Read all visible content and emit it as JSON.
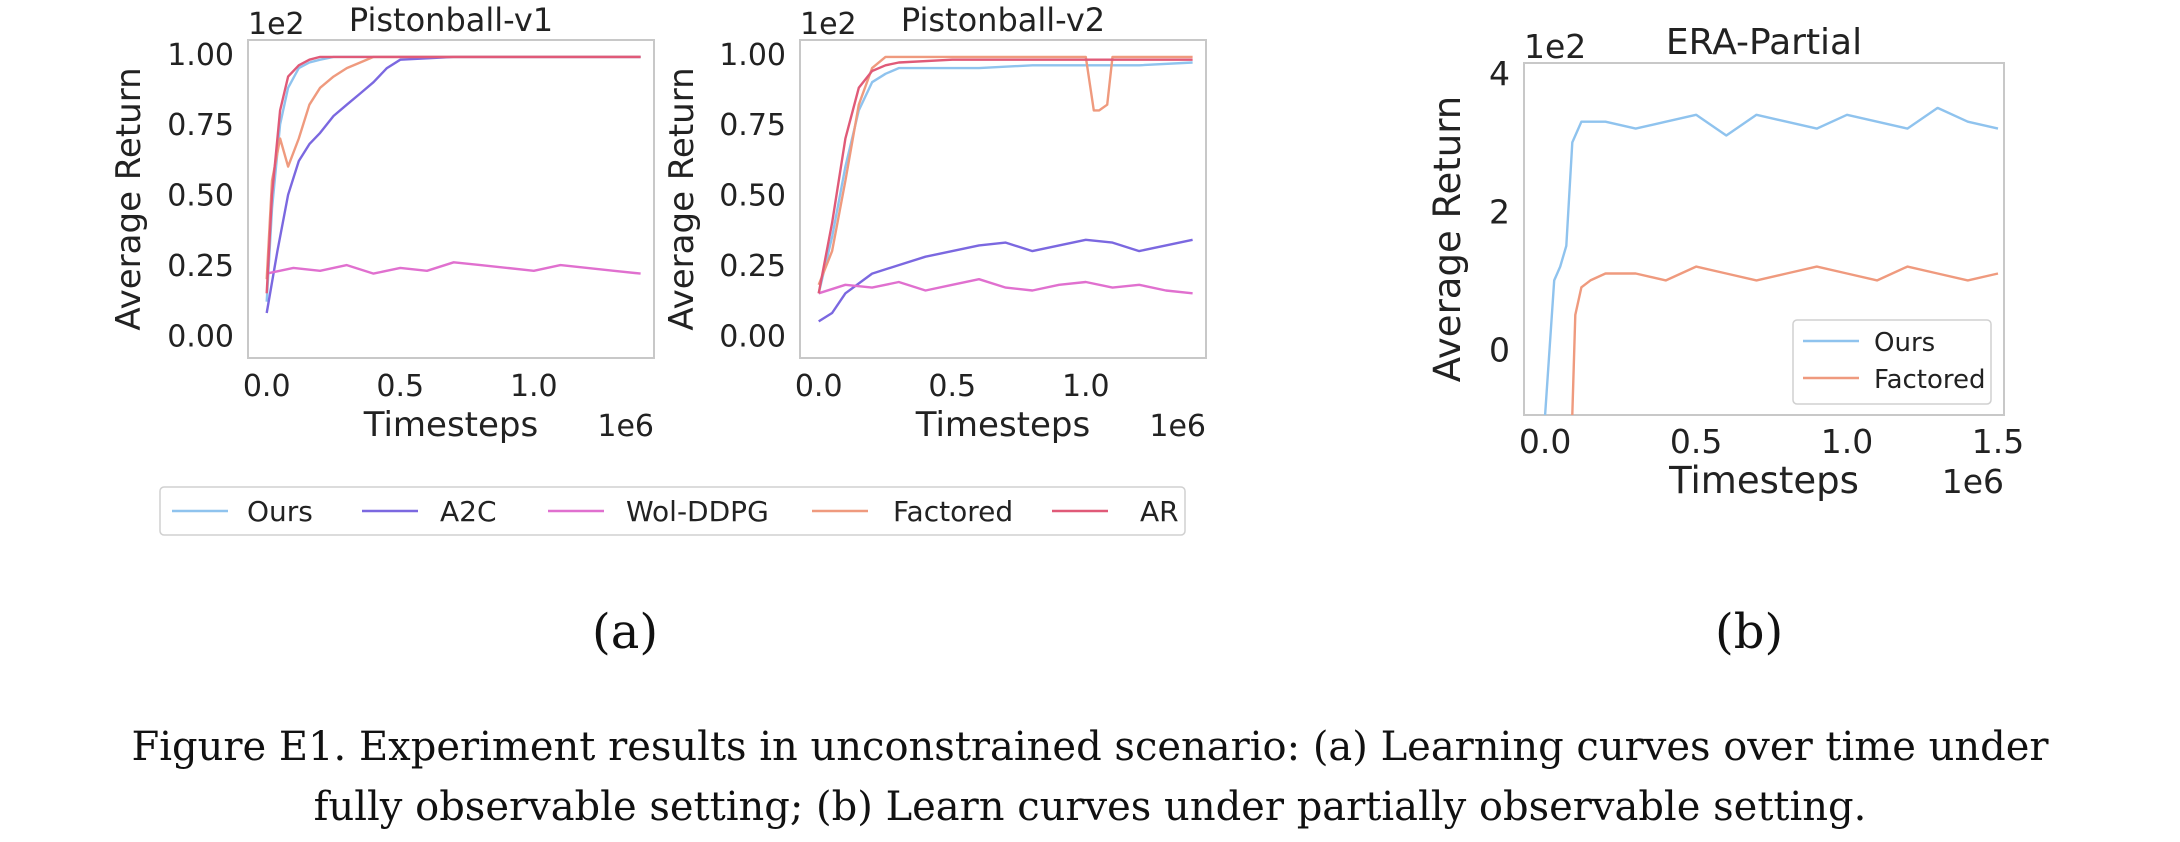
{
  "colors": {
    "Ours": "#8fc3ee",
    "A2C": "#7b68e0",
    "Wol-DDPG": "#e070cf",
    "Factored": "#ef9a7e",
    "AR": "#e05a78"
  },
  "chart_data": [
    {
      "type": "line",
      "title": "Pistonball-v1",
      "xlabel": "Timesteps",
      "ylabel": "Average Return",
      "x_multiplier": "1e6",
      "y_multiplier": "1e2",
      "xlim": [
        -0.07,
        1.45
      ],
      "ylim": [
        -0.08,
        1.05
      ],
      "xticks": [
        "0.0",
        "0.5",
        "1.0"
      ],
      "xtick_values": [
        0,
        0.5,
        1.0
      ],
      "yticks": [
        "0.00",
        "0.25",
        "0.50",
        "0.75",
        "1.00"
      ],
      "ytick_values": [
        0,
        0.25,
        0.5,
        0.75,
        1.0
      ],
      "series": [
        {
          "name": "Ours",
          "x": [
            0,
            0.02,
            0.05,
            0.08,
            0.12,
            0.16,
            0.2,
            0.25,
            0.3,
            0.4,
            0.6,
            0.8,
            1.0,
            1.2,
            1.4
          ],
          "y": [
            0.12,
            0.45,
            0.75,
            0.88,
            0.95,
            0.97,
            0.98,
            0.99,
            0.99,
            0.99,
            0.99,
            0.99,
            0.99,
            0.99,
            0.99
          ]
        },
        {
          "name": "A2C",
          "x": [
            0,
            0.04,
            0.08,
            0.12,
            0.16,
            0.2,
            0.25,
            0.3,
            0.35,
            0.4,
            0.45,
            0.5,
            0.7,
            1.0,
            1.4
          ],
          "y": [
            0.08,
            0.3,
            0.5,
            0.62,
            0.68,
            0.72,
            0.78,
            0.82,
            0.86,
            0.9,
            0.95,
            0.98,
            0.99,
            0.99,
            0.99
          ]
        },
        {
          "name": "Wol-DDPG",
          "x": [
            0,
            0.1,
            0.2,
            0.3,
            0.4,
            0.5,
            0.6,
            0.7,
            0.8,
            0.9,
            1.0,
            1.1,
            1.2,
            1.3,
            1.4
          ],
          "y": [
            0.22,
            0.24,
            0.23,
            0.25,
            0.22,
            0.24,
            0.23,
            0.26,
            0.25,
            0.24,
            0.23,
            0.25,
            0.24,
            0.23,
            0.22
          ]
        },
        {
          "name": "Factored",
          "x": [
            0,
            0.02,
            0.05,
            0.08,
            0.12,
            0.16,
            0.2,
            0.25,
            0.3,
            0.35,
            0.4,
            0.6,
            1.0,
            1.4
          ],
          "y": [
            0.2,
            0.55,
            0.7,
            0.6,
            0.7,
            0.82,
            0.88,
            0.92,
            0.95,
            0.97,
            0.99,
            0.99,
            0.99,
            0.99
          ]
        },
        {
          "name": "AR",
          "x": [
            0,
            0.02,
            0.05,
            0.08,
            0.12,
            0.16,
            0.2,
            0.25,
            0.3,
            0.4,
            0.6,
            0.8,
            1.0,
            1.4
          ],
          "y": [
            0.15,
            0.5,
            0.8,
            0.92,
            0.96,
            0.98,
            0.99,
            0.99,
            0.99,
            0.99,
            0.99,
            0.99,
            0.99,
            0.99
          ]
        }
      ]
    },
    {
      "type": "line",
      "title": "Pistonball-v2",
      "xlabel": "Timesteps",
      "ylabel": "Average Return",
      "x_multiplier": "1e6",
      "y_multiplier": "1e2",
      "xlim": [
        -0.07,
        1.45
      ],
      "ylim": [
        -0.08,
        1.05
      ],
      "xticks": [
        "0.0",
        "0.5",
        "1.0"
      ],
      "xtick_values": [
        0,
        0.5,
        1.0
      ],
      "yticks": [
        "0.00",
        "0.25",
        "0.50",
        "0.75",
        "1.00"
      ],
      "ytick_values": [
        0,
        0.25,
        0.5,
        0.75,
        1.0
      ],
      "series": [
        {
          "name": "Ours",
          "x": [
            0,
            0.05,
            0.1,
            0.15,
            0.2,
            0.25,
            0.3,
            0.4,
            0.6,
            0.8,
            1.0,
            1.2,
            1.4
          ],
          "y": [
            0.15,
            0.35,
            0.6,
            0.8,
            0.9,
            0.93,
            0.95,
            0.95,
            0.95,
            0.96,
            0.96,
            0.96,
            0.97
          ]
        },
        {
          "name": "A2C",
          "x": [
            0,
            0.05,
            0.1,
            0.2,
            0.3,
            0.4,
            0.5,
            0.6,
            0.7,
            0.8,
            0.9,
            1.0,
            1.1,
            1.2,
            1.3,
            1.4
          ],
          "y": [
            0.05,
            0.08,
            0.15,
            0.22,
            0.25,
            0.28,
            0.3,
            0.32,
            0.33,
            0.3,
            0.32,
            0.34,
            0.33,
            0.3,
            0.32,
            0.34
          ]
        },
        {
          "name": "Wol-DDPG",
          "x": [
            0,
            0.1,
            0.2,
            0.3,
            0.4,
            0.5,
            0.6,
            0.7,
            0.8,
            0.9,
            1.0,
            1.1,
            1.2,
            1.3,
            1.4
          ],
          "y": [
            0.15,
            0.18,
            0.17,
            0.19,
            0.16,
            0.18,
            0.2,
            0.17,
            0.16,
            0.18,
            0.19,
            0.17,
            0.18,
            0.16,
            0.15
          ]
        },
        {
          "name": "Factored",
          "x": [
            0,
            0.05,
            0.1,
            0.15,
            0.2,
            0.25,
            0.3,
            0.5,
            0.8,
            1.0,
            1.03,
            1.05,
            1.08,
            1.1,
            1.2,
            1.4
          ],
          "y": [
            0.18,
            0.3,
            0.55,
            0.82,
            0.95,
            0.99,
            0.99,
            0.99,
            0.99,
            0.99,
            0.8,
            0.8,
            0.82,
            0.99,
            0.99,
            0.99
          ]
        },
        {
          "name": "AR",
          "x": [
            0,
            0.05,
            0.1,
            0.15,
            0.2,
            0.25,
            0.3,
            0.5,
            0.8,
            1.0,
            1.2,
            1.4
          ],
          "y": [
            0.15,
            0.4,
            0.7,
            0.88,
            0.94,
            0.96,
            0.97,
            0.98,
            0.98,
            0.98,
            0.98,
            0.98
          ]
        }
      ]
    },
    {
      "type": "line",
      "title": "ERA-Partial",
      "xlabel": "Timesteps",
      "ylabel": "Average Return",
      "x_multiplier": "1e6",
      "y_multiplier": "1e2",
      "xlim": [
        -0.07,
        1.52
      ],
      "ylim": [
        -0.95,
        4.15
      ],
      "xticks": [
        "0.0",
        "0.5",
        "1.0",
        "1.5"
      ],
      "xtick_values": [
        0,
        0.5,
        1.0,
        1.5
      ],
      "yticks": [
        "0",
        "2",
        "4"
      ],
      "ytick_values": [
        0,
        2,
        4
      ],
      "series": [
        {
          "name": "Ours",
          "x": [
            0,
            0.03,
            0.05,
            0.07,
            0.09,
            0.12,
            0.2,
            0.3,
            0.4,
            0.5,
            0.6,
            0.7,
            0.8,
            0.9,
            1.0,
            1.1,
            1.2,
            1.3,
            1.4,
            1.5
          ],
          "y": [
            -0.95,
            1.0,
            1.2,
            1.5,
            3.0,
            3.3,
            3.3,
            3.2,
            3.3,
            3.4,
            3.1,
            3.4,
            3.3,
            3.2,
            3.4,
            3.3,
            3.2,
            3.5,
            3.3,
            3.2
          ]
        },
        {
          "name": "Factored",
          "x": [
            0.09,
            0.1,
            0.12,
            0.15,
            0.2,
            0.3,
            0.4,
            0.5,
            0.6,
            0.7,
            0.8,
            0.9,
            1.0,
            1.1,
            1.2,
            1.3,
            1.4,
            1.5
          ],
          "y": [
            -0.95,
            0.5,
            0.9,
            1.0,
            1.1,
            1.1,
            1.0,
            1.2,
            1.1,
            1.0,
            1.1,
            1.2,
            1.1,
            1.0,
            1.2,
            1.1,
            1.0,
            1.1
          ]
        }
      ]
    }
  ],
  "legend_a": [
    "Ours",
    "A2C",
    "Wol-DDPG",
    "Factored",
    "AR"
  ],
  "legend_b": [
    "Ours",
    "Factored"
  ],
  "subcaption_a": "(a)",
  "subcaption_b": "(b)",
  "caption_line1": "Figure E1. Experiment results in unconstrained scenario: (a) Learning curves over time under",
  "caption_line2": "fully observable setting; (b) Learn curves under partially observable setting."
}
